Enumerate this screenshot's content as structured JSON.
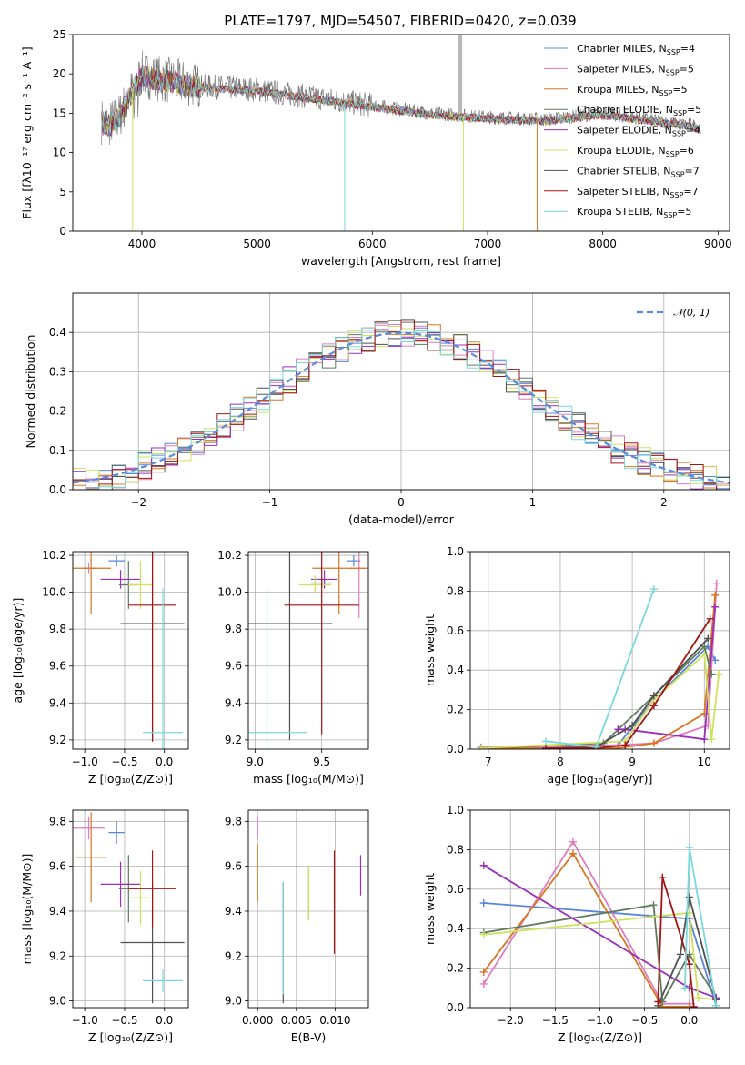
{
  "colors": {
    "chabrier_miles": "#5b86d8",
    "salpeter_miles": "#e07cc0",
    "kroupa_miles": "#d8751f",
    "chabrier_elodie": "#5e7a5e",
    "salpeter_elodie": "#9a2fb8",
    "kroupa_elodie": "#cfe25e",
    "chabrier_stelib": "#505050",
    "salpeter_stelib": "#a31414",
    "kroupa_stelib": "#7ad8dd",
    "grid": "#b0b0b0",
    "normal_fit": "#5b8ad8"
  },
  "chart_data": [
    {
      "id": "spectrum",
      "type": "line",
      "title": "PLATE=1797, MJD=54507, FIBERID=0420, z=0.039",
      "xlabel": "wavelength [Angstrom, rest frame]",
      "ylabel": "Flux [fλ10⁻¹⁷ erg cm⁻² s⁻¹ A⁻¹]",
      "xlim": [
        3400,
        9100
      ],
      "ylim": [
        0,
        25
      ],
      "xticks": [
        "4000",
        "5000",
        "6000",
        "7000",
        "8000",
        "9000"
      ],
      "xtick_values": [
        4000,
        5000,
        6000,
        7000,
        8000,
        9000
      ],
      "yticks": [
        "0",
        "5",
        "10",
        "15",
        "20",
        "25"
      ],
      "ytick_values": [
        0,
        5,
        10,
        15,
        20,
        25
      ],
      "legend_position": "top-right",
      "legend": [
        {
          "key": "chabrier_miles",
          "label": "Chabrier MILES, N",
          "sub": "SSP",
          "suffix": "=4"
        },
        {
          "key": "salpeter_miles",
          "label": "Salpeter MILES, N",
          "sub": "SSP",
          "suffix": "=5"
        },
        {
          "key": "kroupa_miles",
          "label": "Kroupa MILES, N",
          "sub": "SSP",
          "suffix": "=5"
        },
        {
          "key": "chabrier_elodie",
          "label": "Chabrier ELODIE, N",
          "sub": "SSP",
          "suffix": "=5"
        },
        {
          "key": "salpeter_elodie",
          "label": "Salpeter ELODIE, N",
          "sub": "SSP",
          "suffix": "=4"
        },
        {
          "key": "kroupa_elodie",
          "label": "Kroupa ELODIE, N",
          "sub": "SSP",
          "suffix": "=6"
        },
        {
          "key": "chabrier_stelib",
          "label": "Chabrier STELIB, N",
          "sub": "SSP",
          "suffix": "=7"
        },
        {
          "key": "salpeter_stelib",
          "label": "Salpeter STELIB, N",
          "sub": "SSP",
          "suffix": "=7"
        },
        {
          "key": "kroupa_stelib",
          "label": "Kroupa STELIB, N",
          "sub": "SSP",
          "suffix": "=5"
        }
      ],
      "continuum_x": [
        3650,
        3700,
        3800,
        3900,
        4000,
        4100,
        4300,
        4500,
        5000,
        5500,
        6000,
        6500,
        7000,
        7500,
        8000,
        8500,
        8850
      ],
      "continuum_y": [
        14,
        13.5,
        14.5,
        17.5,
        20,
        19.5,
        19,
        18.5,
        18,
        17,
        16,
        15,
        14.5,
        14.2,
        15,
        14,
        13.3
      ]
    },
    {
      "id": "residuals",
      "type": "bar",
      "xlabel": "(data-model)/error",
      "ylabel": "Normed distribution",
      "xlim": [
        -2.5,
        2.5
      ],
      "ylim": [
        0,
        0.5
      ],
      "xticks": [
        "−2",
        "−1",
        "0",
        "1",
        "2"
      ],
      "xtick_values": [
        -2,
        -1,
        0,
        1,
        2
      ],
      "yticks": [
        "0.0",
        "0.1",
        "0.2",
        "0.3",
        "0.4"
      ],
      "ytick_values": [
        0,
        0.1,
        0.2,
        0.3,
        0.4
      ],
      "legend_position": "top-right",
      "fit_label": "𝒩(0, 1)",
      "bin_width": 0.1
    },
    {
      "id": "age_vs_z",
      "type": "scatter",
      "xlabel": "Z [log₁₀(Z/Z⊙)]",
      "ylabel": "age  [log₁₀(age/yr)]",
      "xlim": [
        -1.15,
        0.3
      ],
      "ylim": [
        9.15,
        10.22
      ],
      "xticks": [
        "−1.0",
        "−0.5",
        "0.0"
      ],
      "xtick_values": [
        -1,
        -0.5,
        0
      ],
      "yticks": [
        "9.2",
        "9.4",
        "9.6",
        "9.8",
        "10.0",
        "10.2"
      ],
      "ytick_values": [
        9.2,
        9.4,
        9.6,
        9.8,
        10.0,
        10.2
      ],
      "points": [
        {
          "key": "chabrier_miles",
          "x": -0.6,
          "xerr": 0.1,
          "y": 10.17,
          "yerr": 0.03
        },
        {
          "key": "salpeter_miles",
          "x": -0.95,
          "xerr": 0.08,
          "y": 10.13,
          "yerr": 0.03
        },
        {
          "key": "kroupa_miles",
          "x": -0.92,
          "xerr": 0.25,
          "y": 10.13,
          "yerr": 0.25
        },
        {
          "key": "chabrier_elodie",
          "x": -0.45,
          "xerr": 0.12,
          "y": 10.04,
          "yerr": 0.13
        },
        {
          "key": "salpeter_elodie",
          "x": -0.55,
          "xerr": 0.25,
          "y": 10.07,
          "yerr": 0.05
        },
        {
          "key": "kroupa_elodie",
          "x": -0.3,
          "xerr": 0.15,
          "y": 10.04,
          "yerr": 0.13
        },
        {
          "key": "chabrier_stelib",
          "x": -0.15,
          "xerr": 0.4,
          "y": 9.83,
          "yerr": 0.63
        },
        {
          "key": "salpeter_stelib",
          "x": -0.15,
          "xerr": 0.3,
          "y": 9.93,
          "yerr": 0.74
        },
        {
          "key": "kroupa_stelib",
          "x": -0.02,
          "xerr": 0.25,
          "y": 9.24,
          "yerr": 0.78
        }
      ]
    },
    {
      "id": "age_vs_mass",
      "type": "scatter",
      "xlabel": "mass [log₁₀(M/M⊙)]",
      "ylabel": "",
      "xlim": [
        8.95,
        9.85
      ],
      "ylim": [
        9.15,
        10.22
      ],
      "xticks": [
        "9.0",
        "9.5"
      ],
      "xtick_values": [
        9.0,
        9.5
      ],
      "yticks": [
        "9.2",
        "9.4",
        "9.6",
        "9.8",
        "10.0",
        "10.2"
      ],
      "ytick_values": [
        9.2,
        9.4,
        9.6,
        9.8,
        10.0,
        10.2
      ],
      "points": [
        {
          "key": "chabrier_miles",
          "x": 9.74,
          "xerr": 0.05,
          "y": 10.17,
          "yerr": 0.03
        },
        {
          "key": "salpeter_miles",
          "x": 9.78,
          "xerr": 0.07,
          "y": 10.13,
          "yerr": 0.27
        },
        {
          "key": "kroupa_miles",
          "x": 9.63,
          "xerr": 0.2,
          "y": 10.13,
          "yerr": 0.25
        },
        {
          "key": "chabrier_elodie",
          "x": 9.5,
          "xerr": 0.08,
          "y": 10.05,
          "yerr": 0.03
        },
        {
          "key": "salpeter_elodie",
          "x": 9.52,
          "xerr": 0.1,
          "y": 10.07,
          "yerr": 0.05
        },
        {
          "key": "kroupa_elodie",
          "x": 9.45,
          "xerr": 0.12,
          "y": 10.04,
          "yerr": 0.05
        },
        {
          "key": "chabrier_stelib",
          "x": 9.26,
          "xerr": 0.32,
          "y": 9.83,
          "yerr": 0.63
        },
        {
          "key": "salpeter_stelib",
          "x": 9.5,
          "xerr": 0.28,
          "y": 9.93,
          "yerr": 0.7
        },
        {
          "key": "kroupa_stelib",
          "x": 9.09,
          "xerr": 0.3,
          "y": 9.24,
          "yerr": 0.78
        }
      ]
    },
    {
      "id": "weight_vs_age",
      "type": "line",
      "xlabel": "age  [log₁₀(age/yr)]",
      "ylabel": "mass weight",
      "xlim": [
        6.75,
        10.35
      ],
      "ylim": [
        0,
        1.0
      ],
      "xticks": [
        "7",
        "8",
        "9",
        "10"
      ],
      "xtick_values": [
        7,
        8,
        9,
        10
      ],
      "yticks": [
        "0.0",
        "0.2",
        "0.4",
        "0.6",
        "0.8",
        "1.0"
      ],
      "ytick_values": [
        0,
        0.2,
        0.4,
        0.6,
        0.8,
        1.0
      ],
      "series": [
        {
          "key": "chabrier_miles",
          "x": [
            6.9,
            8.8,
            9.3,
            10.05,
            10.15
          ],
          "y": [
            0.01,
            0.02,
            0.25,
            0.52,
            0.45
          ]
        },
        {
          "key": "salpeter_miles",
          "x": [
            6.9,
            8.8,
            9.3,
            10.05,
            10.17
          ],
          "y": [
            0.01,
            0.02,
            0.03,
            0.12,
            0.84
          ]
        },
        {
          "key": "kroupa_miles",
          "x": [
            6.9,
            8.8,
            9.3,
            10.0,
            10.15
          ],
          "y": [
            0.005,
            0.005,
            0.03,
            0.18,
            0.78
          ]
        },
        {
          "key": "chabrier_elodie",
          "x": [
            6.9,
            8.6,
            9.3,
            10.0,
            10.1
          ],
          "y": [
            0.005,
            0.03,
            0.27,
            0.52,
            0.38
          ]
        },
        {
          "key": "salpeter_elodie",
          "x": [
            8.8,
            8.9,
            10.0,
            10.15
          ],
          "y": [
            0.1,
            0.1,
            0.05,
            0.72
          ]
        },
        {
          "key": "kroupa_elodie",
          "x": [
            6.9,
            8.9,
            9.3,
            10.0,
            10.1,
            10.2
          ],
          "y": [
            0.005,
            0.04,
            0.25,
            0.48,
            0.05,
            0.38
          ]
        },
        {
          "key": "chabrier_stelib",
          "x": [
            7.8,
            8.5,
            9.0,
            9.3,
            10.05
          ],
          "y": [
            0.005,
            0.01,
            0.12,
            0.27,
            0.56
          ]
        },
        {
          "key": "salpeter_stelib",
          "x": [
            7.8,
            8.5,
            8.9,
            9.3,
            10.08
          ],
          "y": [
            0.005,
            0.005,
            0.02,
            0.22,
            0.66
          ]
        },
        {
          "key": "kroupa_stelib",
          "x": [
            7.8,
            8.5,
            9.3
          ],
          "y": [
            0.04,
            0.01,
            0.81
          ]
        }
      ]
    },
    {
      "id": "mass_vs_z",
      "type": "scatter",
      "xlabel": "Z [log₁₀(Z/Z⊙)]",
      "ylabel": "mass [log₁₀(M/M⊙)]",
      "xlim": [
        -1.15,
        0.3
      ],
      "ylim": [
        8.97,
        9.85
      ],
      "xticks": [
        "−1.0",
        "−0.5",
        "0.0"
      ],
      "xtick_values": [
        -1,
        -0.5,
        0
      ],
      "yticks": [
        "9.0",
        "9.2",
        "9.4",
        "9.6",
        "9.8"
      ],
      "ytick_values": [
        9.0,
        9.2,
        9.4,
        9.6,
        9.8
      ],
      "points": [
        {
          "key": "chabrier_miles",
          "x": -0.6,
          "xerr": 0.1,
          "y": 9.75,
          "yerr": 0.05
        },
        {
          "key": "salpeter_miles",
          "x": -0.95,
          "xerr": 0.2,
          "y": 9.77,
          "yerr": 0.05
        },
        {
          "key": "kroupa_miles",
          "x": -0.92,
          "xerr": 0.2,
          "y": 9.64,
          "yerr": 0.2
        },
        {
          "key": "chabrier_elodie",
          "x": -0.45,
          "xerr": 0.12,
          "y": 9.5,
          "yerr": 0.15
        },
        {
          "key": "salpeter_elodie",
          "x": -0.55,
          "xerr": 0.25,
          "y": 9.52,
          "yerr": 0.1
        },
        {
          "key": "kroupa_elodie",
          "x": -0.3,
          "xerr": 0.12,
          "y": 9.46,
          "yerr": 0.12
        },
        {
          "key": "chabrier_stelib",
          "x": -0.15,
          "xerr": 0.4,
          "y": 9.26,
          "yerr": 0.27
        },
        {
          "key": "salpeter_stelib",
          "x": -0.15,
          "xerr": 0.3,
          "y": 9.5,
          "yerr": 0.17
        },
        {
          "key": "kroupa_stelib",
          "x": -0.02,
          "xerr": 0.25,
          "y": 9.09,
          "yerr": 0.05
        }
      ]
    },
    {
      "id": "mass_vs_ebv",
      "type": "scatter",
      "xlabel": "E(B-V)",
      "ylabel": "",
      "xlim": [
        -0.0012,
        0.0143
      ],
      "ylim": [
        8.97,
        9.85
      ],
      "xticks": [
        "0.000",
        "0.005",
        "0.010"
      ],
      "xtick_values": [
        0,
        0.005,
        0.01
      ],
      "yticks": [
        "9.0",
        "9.2",
        "9.4",
        "9.6",
        "9.8"
      ],
      "ytick_values": [
        9.0,
        9.2,
        9.4,
        9.6,
        9.8
      ],
      "points": [
        {
          "key": "salpeter_miles",
          "x": 0.0,
          "xerr": 0,
          "y": 9.77,
          "yerr": 0.05
        },
        {
          "key": "kroupa_miles",
          "x": 0.0,
          "xerr": 0,
          "y": 9.57,
          "yerr": 0.13
        },
        {
          "key": "chabrier_stelib",
          "x": 0.0033,
          "xerr": 0,
          "y": 9.26,
          "yerr": 0.27
        },
        {
          "key": "kroupa_stelib",
          "x": 0.0033,
          "xerr": 0,
          "y": 9.28,
          "yerr": 0.25
        },
        {
          "key": "chabrier_elodie",
          "x": 0.0066,
          "xerr": 0,
          "y": 9.48,
          "yerr": 0.12
        },
        {
          "key": "kroupa_elodie",
          "x": 0.0066,
          "xerr": 0,
          "y": 9.48,
          "yerr": 0.12
        },
        {
          "key": "salpeter_stelib",
          "x": 0.0099,
          "xerr": 0,
          "y": 9.44,
          "yerr": 0.23
        },
        {
          "key": "salpeter_elodie",
          "x": 0.0133,
          "xerr": 0,
          "y": 9.56,
          "yerr": 0.09
        }
      ]
    },
    {
      "id": "weight_vs_z",
      "type": "line",
      "xlabel": "Z [log₁₀(Z/Z⊙)]",
      "ylabel": "mass weight",
      "xlim": [
        -2.45,
        0.45
      ],
      "ylim": [
        0,
        1.0
      ],
      "xticks": [
        "−2.0",
        "−1.5",
        "−1.0",
        "−0.5",
        "0.0"
      ],
      "xtick_values": [
        -2,
        -1.5,
        -1,
        -0.5,
        0
      ],
      "yticks": [
        "0.0",
        "0.2",
        "0.4",
        "0.6",
        "0.8",
        "1.0"
      ],
      "ytick_values": [
        0,
        0.2,
        0.4,
        0.6,
        0.8,
        1.0
      ],
      "series": [
        {
          "key": "chabrier_miles",
          "x": [
            -2.3,
            0.0,
            0.3
          ],
          "y": [
            0.53,
            0.45,
            0.01
          ]
        },
        {
          "key": "salpeter_miles",
          "x": [
            -2.3,
            -1.3,
            -0.3,
            0.0
          ],
          "y": [
            0.12,
            0.84,
            0.02,
            0.02
          ]
        },
        {
          "key": "kroupa_miles",
          "x": [
            -2.3,
            -1.3,
            -0.3,
            0.0
          ],
          "y": [
            0.18,
            0.78,
            0.005,
            0.005
          ]
        },
        {
          "key": "chabrier_elodie",
          "x": [
            -2.3,
            -0.4,
            -0.3,
            0.0,
            0.3
          ],
          "y": [
            0.38,
            0.52,
            0.03,
            0.27,
            0.05
          ]
        },
        {
          "key": "salpeter_elodie",
          "x": [
            -2.3,
            0.0,
            0.3
          ],
          "y": [
            0.72,
            0.1,
            0.05
          ]
        },
        {
          "key": "kroupa_elodie",
          "x": [
            -2.3,
            0.0,
            0.1,
            0.3
          ],
          "y": [
            0.37,
            0.48,
            0.05,
            0.04
          ]
        },
        {
          "key": "chabrier_stelib",
          "x": [
            -0.35,
            -0.1,
            0.0,
            0.3
          ],
          "y": [
            0.01,
            0.27,
            0.56,
            0.04
          ]
        },
        {
          "key": "salpeter_stelib",
          "x": [
            -0.35,
            -0.3,
            0.0,
            0.05
          ],
          "y": [
            0.03,
            0.66,
            0.22,
            0.005
          ]
        },
        {
          "key": "kroupa_stelib",
          "x": [
            -0.05,
            0.0,
            0.3
          ],
          "y": [
            0.1,
            0.81,
            0.01
          ]
        }
      ]
    }
  ]
}
